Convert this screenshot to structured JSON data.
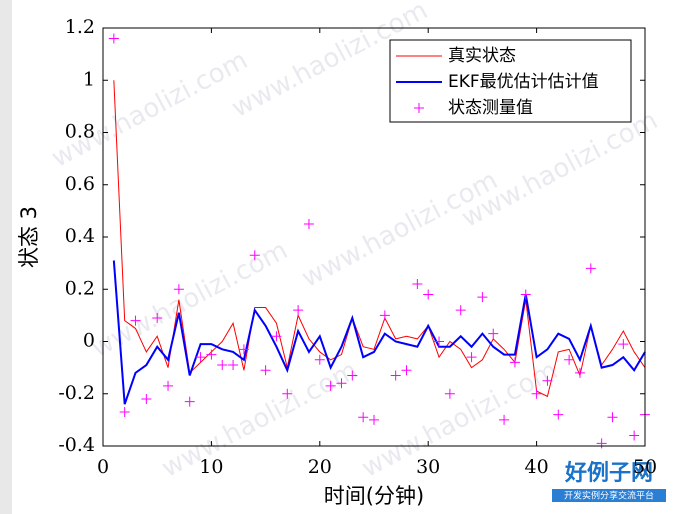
{
  "chart_data": {
    "type": "line",
    "xlabel": "时间(分钟)",
    "ylabel": "状态 3",
    "x": [
      1,
      2,
      3,
      4,
      5,
      6,
      7,
      8,
      9,
      10,
      11,
      12,
      13,
      14,
      15,
      16,
      17,
      18,
      19,
      20,
      21,
      22,
      23,
      24,
      25,
      26,
      27,
      28,
      29,
      30,
      31,
      32,
      33,
      34,
      35,
      36,
      37,
      38,
      39,
      40,
      41,
      42,
      43,
      44,
      45,
      46,
      47,
      48,
      49,
      50
    ],
    "xlim": [
      0,
      50
    ],
    "xticks": [
      0,
      10,
      20,
      30,
      40,
      50
    ],
    "ylim": [
      -0.4,
      1.2
    ],
    "yticks": [
      -0.4,
      -0.2,
      0,
      0.2,
      0.4,
      0.6,
      0.8,
      1,
      1.2
    ],
    "legend": "upper right",
    "series": [
      {
        "name": "真实状态",
        "color": "#ff0000",
        "line_width": 1,
        "marker": "none",
        "values": [
          1.0,
          0.08,
          0.05,
          -0.04,
          0.02,
          -0.1,
          0.16,
          -0.12,
          -0.08,
          -0.04,
          0.0,
          0.07,
          -0.11,
          0.13,
          0.13,
          0.07,
          -0.1,
          0.1,
          0.01,
          -0.04,
          -0.07,
          -0.05,
          0.09,
          -0.02,
          -0.03,
          0.09,
          0.01,
          0.02,
          0.01,
          0.06,
          -0.06,
          0.0,
          -0.03,
          -0.1,
          -0.07,
          0.01,
          -0.03,
          -0.08,
          0.16,
          -0.19,
          -0.21,
          -0.04,
          -0.03,
          -0.13,
          0.06,
          -0.09,
          -0.03,
          0.04,
          -0.04,
          -0.1
        ]
      },
      {
        "name": "EKF最优估计估计值",
        "color": "#0000ff",
        "line_width": 2,
        "marker": "none",
        "values": [
          0.31,
          -0.24,
          -0.12,
          -0.09,
          -0.02,
          -0.07,
          0.11,
          -0.13,
          -0.01,
          -0.01,
          -0.03,
          -0.04,
          -0.07,
          0.12,
          0.06,
          -0.02,
          -0.11,
          0.04,
          -0.04,
          0.02,
          -0.1,
          -0.02,
          0.09,
          -0.06,
          -0.04,
          0.03,
          0.0,
          -0.01,
          -0.02,
          0.06,
          -0.02,
          -0.02,
          0.02,
          -0.02,
          0.03,
          -0.02,
          -0.05,
          -0.05,
          0.18,
          -0.06,
          -0.03,
          0.03,
          0.01,
          -0.07,
          0.06,
          -0.1,
          -0.09,
          -0.06,
          -0.11,
          -0.04
        ]
      },
      {
        "name": "状态测量值",
        "color": "#ff00ff",
        "line_width": 0,
        "marker": "+",
        "values": [
          1.16,
          -0.27,
          0.08,
          -0.22,
          0.09,
          -0.17,
          0.2,
          -0.23,
          -0.06,
          -0.05,
          -0.09,
          -0.09,
          -0.03,
          0.33,
          -0.11,
          0.02,
          -0.2,
          0.12,
          0.45,
          -0.07,
          -0.17,
          -0.16,
          -0.13,
          -0.29,
          -0.3,
          0.1,
          -0.13,
          -0.11,
          0.22,
          0.18,
          0.0,
          -0.2,
          0.12,
          -0.06,
          0.17,
          0.03,
          -0.3,
          -0.08,
          0.18,
          -0.2,
          -0.15,
          -0.28,
          -0.07,
          -0.12,
          0.28,
          -0.39,
          -0.29,
          -0.01,
          -0.36,
          -0.28
        ]
      }
    ],
    "watermark": "www.haolizi.com",
    "logo": "好例子网",
    "logo_subtitle": "开发实例分享交流平台"
  }
}
